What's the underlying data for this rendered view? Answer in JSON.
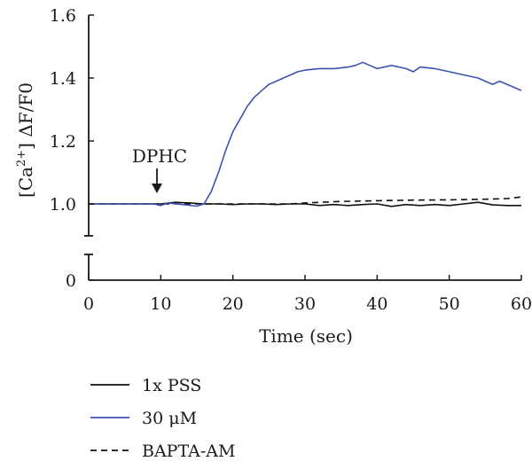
{
  "chart_data": {
    "type": "line",
    "xlabel": "Time (sec)",
    "ylabel": {
      "prefix": "[Ca",
      "superscript": "2+",
      "suffix": "] ΔF/F0"
    },
    "xlim": [
      0,
      60
    ],
    "ylim_upper": [
      1.0,
      1.6
    ],
    "ylim_lower": [
      0,
      0
    ],
    "y_axis_break": true,
    "x_ticks": [
      "0",
      "10",
      "20",
      "30",
      "40",
      "50",
      "60"
    ],
    "y_ticks_upper": [
      "1.0",
      "1.2",
      "1.4",
      "1.6"
    ],
    "y_ticks_lower": [
      "0"
    ],
    "grid": false,
    "legend_placement": "bottom-left",
    "annotation": {
      "text": "DPHC",
      "x": 9.5,
      "y": 1.0,
      "arrow": "down"
    },
    "series": [
      {
        "name": "1x PSS",
        "color": "#111111",
        "dash": "solid",
        "x": [
          0,
          4,
          8,
          10,
          12,
          14,
          16,
          18,
          20,
          22,
          24,
          26,
          28,
          30,
          32,
          34,
          36,
          38,
          40,
          42,
          44,
          46,
          48,
          50,
          52,
          54,
          56,
          58,
          60
        ],
        "y": [
          1.0,
          1.0,
          1.0,
          1.0,
          1.005,
          1.003,
          1.0,
          1.0,
          0.998,
          1.0,
          1.0,
          0.998,
          1.0,
          1.0,
          0.995,
          0.998,
          0.995,
          0.998,
          1.0,
          0.992,
          0.998,
          0.995,
          0.998,
          0.995,
          1.0,
          1.005,
          0.997,
          0.995,
          0.995
        ]
      },
      {
        "name": "30 μM",
        "color": "#3f51b5",
        "dash": "solid",
        "x": [
          0,
          5,
          9,
          10,
          11,
          13,
          15,
          16,
          17,
          18,
          19,
          20,
          21,
          22,
          23,
          24,
          25,
          26,
          27,
          28,
          29,
          30,
          32,
          34,
          36,
          37,
          38,
          39,
          40,
          42,
          44,
          45,
          46,
          48,
          50,
          52,
          54,
          55,
          56,
          57,
          58,
          59,
          60
        ],
        "y": [
          1.0,
          1.0,
          1.0,
          0.995,
          1.003,
          0.998,
          0.993,
          1.0,
          1.04,
          1.1,
          1.17,
          1.23,
          1.27,
          1.31,
          1.34,
          1.36,
          1.38,
          1.39,
          1.4,
          1.41,
          1.42,
          1.425,
          1.43,
          1.43,
          1.435,
          1.44,
          1.45,
          1.44,
          1.43,
          1.44,
          1.43,
          1.42,
          1.435,
          1.43,
          1.42,
          1.41,
          1.4,
          1.39,
          1.38,
          1.39,
          1.38,
          1.37,
          1.36
        ]
      },
      {
        "name": "BAPTA-AM",
        "color": "#111111",
        "dash": "dashed",
        "x": [
          0,
          10,
          20,
          25,
          28,
          30,
          35,
          40,
          45,
          50,
          55,
          58,
          60
        ],
        "y": [
          1.0,
          1.0,
          1.0,
          1.0,
          1.0,
          1.003,
          1.008,
          1.01,
          1.012,
          1.013,
          1.015,
          1.017,
          1.022
        ]
      }
    ]
  }
}
